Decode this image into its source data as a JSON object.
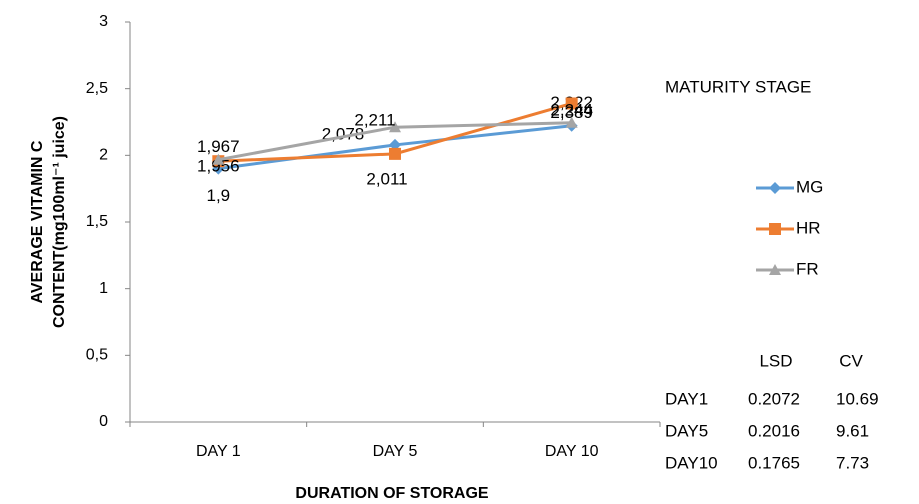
{
  "chart_data": {
    "type": "line",
    "xlabel": "DURATION OF STORAGE",
    "ylabel_lines": [
      "AVERAGE VITAMIN C",
      "CONTENT(mg100ml⁻¹ juice)"
    ],
    "categories": [
      "DAY 1",
      "DAY 5",
      "DAY 10"
    ],
    "series": [
      {
        "name": "MG",
        "color": "#5b9bd5",
        "marker": "diamond",
        "values": [
          1.9,
          2.078,
          2.222
        ],
        "value_labels": [
          "1,9",
          "2,078",
          "2,222"
        ]
      },
      {
        "name": "HR",
        "color": "#ed7d31",
        "marker": "square",
        "values": [
          1.956,
          2.011,
          2.389
        ],
        "value_labels": [
          "1,956",
          "2,011",
          "2,389"
        ]
      },
      {
        "name": "FR",
        "color": "#a5a5a5",
        "marker": "triangle",
        "values": [
          1.967,
          2.211,
          2.244
        ],
        "value_labels": [
          "1,967",
          "2,211",
          "2,244"
        ]
      }
    ],
    "ylim": [
      0,
      3
    ],
    "yticks": [
      0,
      {
        "value": 0.5,
        "label": "0,5"
      },
      1,
      {
        "value": 1.5,
        "label": "1,5"
      },
      2,
      {
        "value": 2.5,
        "label": "2,5"
      },
      3
    ],
    "legend_title": "MATURITY STAGE",
    "legend_position": "right",
    "stats_table": {
      "header": [
        "LSD",
        "CV"
      ],
      "rows": [
        [
          "DAY1",
          0.2072,
          10.69
        ],
        [
          "DAY5",
          0.2016,
          9.61
        ],
        [
          "DAY10",
          0.1765,
          7.73
        ]
      ]
    }
  }
}
